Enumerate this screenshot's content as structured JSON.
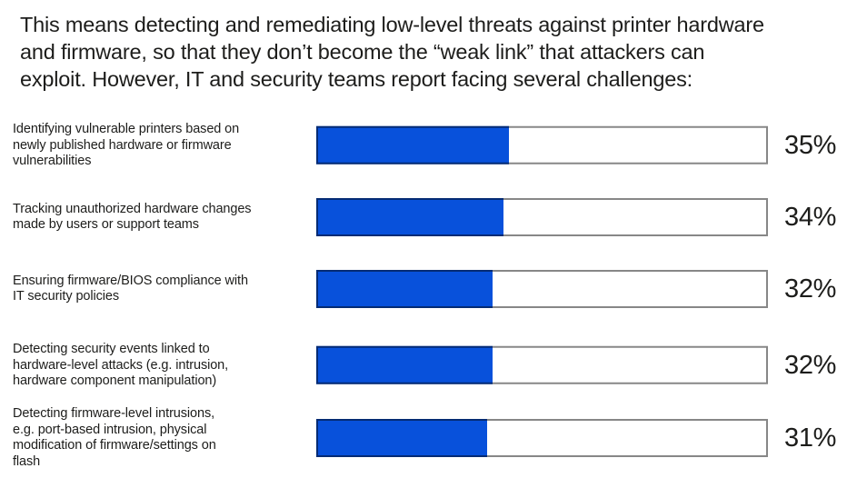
{
  "intro": {
    "text": "This means detecting and remediating low-level threats against printer hardware\nand firmware, so that they don’t become the “weak link” that attackers can\nexploit. However, IT and security teams report facing several challenges:"
  },
  "colors": {
    "bar_fill": "#0851db",
    "bar_track_background": "#ffffff",
    "bar_track_border": "rgba(0,0,0,0.47)",
    "text": "#1d1d1b"
  },
  "chart_data": {
    "type": "bar",
    "orientation": "horizontal",
    "categories": [
      "Identifying vulnerable printers based on\nnewly published hardware or firmware\nvulnerabilities",
      "Tracking unauthorized hardware changes\nmade by users or support teams",
      "Ensuring firmware/BIOS compliance with\nIT security policies",
      "Detecting security events linked to\nhardware-level attacks (e.g. intrusion,\nhardware component manipulation)",
      "Detecting firmware-level intrusions,\ne.g. port-based intrusion, physical\nmodification of firmware/settings on\nflash"
    ],
    "values": [
      35,
      34,
      32,
      32,
      31
    ],
    "value_labels": [
      "35%",
      "34%",
      "32%",
      "32%",
      "31%"
    ],
    "unit": "%",
    "xlim": [
      0,
      82
    ],
    "grid": false,
    "legend": false,
    "value_label_position": "right-of-bar"
  }
}
